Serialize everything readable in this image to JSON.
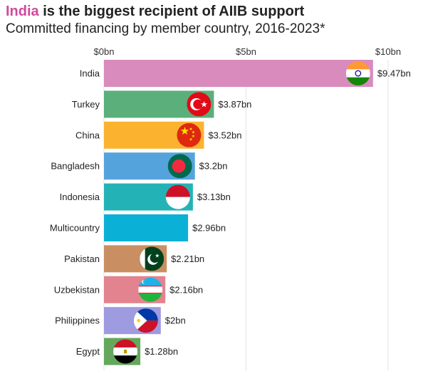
{
  "header": {
    "title_highlight": "India",
    "title_rest": " is the biggest recipient of AIIB support",
    "subtitle": "Committed financing by member country, 2016-2023*"
  },
  "chart_data": {
    "type": "bar",
    "orientation": "horizontal",
    "title": "India is the biggest recipient of AIIB support",
    "subtitle": "Committed financing by member country, 2016-2023*",
    "xlim": [
      0,
      10
    ],
    "ticks": [
      {
        "value": 0,
        "label": "$0bn"
      },
      {
        "value": 5,
        "label": "$5bn"
      },
      {
        "value": 10,
        "label": "$10bn"
      }
    ],
    "grid": true,
    "bars": [
      {
        "category": "India",
        "value": 9.47,
        "label": "$9.47bn",
        "color": "#d98bbd",
        "flag": "india-flag-icon"
      },
      {
        "category": "Turkey",
        "value": 3.87,
        "label": "$3.87bn",
        "color": "#5aaf7a",
        "flag": "turkey-flag-icon"
      },
      {
        "category": "China",
        "value": 3.52,
        "label": "$3.52bn",
        "color": "#fbb22f",
        "flag": "china-flag-icon"
      },
      {
        "category": "Bangladesh",
        "value": 3.2,
        "label": "$3.2bn",
        "color": "#55a3dc",
        "flag": "bangladesh-flag-icon"
      },
      {
        "category": "Indonesia",
        "value": 3.13,
        "label": "$3.13bn",
        "color": "#23b3b6",
        "flag": "indonesia-flag-icon"
      },
      {
        "category": "Multicountry",
        "value": 2.96,
        "label": "$2.96bn",
        "color": "#0bb0d6",
        "flag": ""
      },
      {
        "category": "Pakistan",
        "value": 2.21,
        "label": "$2.21bn",
        "color": "#c98f63",
        "flag": "pakistan-flag-icon"
      },
      {
        "category": "Uzbekistan",
        "value": 2.16,
        "label": "$2.16bn",
        "color": "#e2838f",
        "flag": "uzbekistan-flag-icon"
      },
      {
        "category": "Philippines",
        "value": 2.0,
        "label": "$2bn",
        "color": "#9e9be0",
        "flag": "philippines-flag-icon"
      },
      {
        "category": "Egypt",
        "value": 1.28,
        "label": "$1.28bn",
        "color": "#64a85d",
        "flag": "egypt-flag-icon"
      }
    ]
  }
}
